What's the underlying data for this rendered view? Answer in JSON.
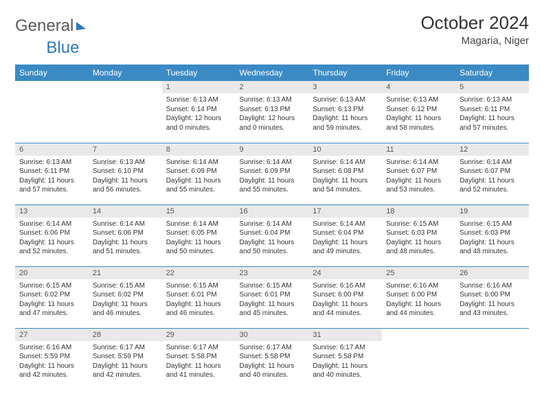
{
  "logo": {
    "word1": "General",
    "word2": "Blue"
  },
  "title": {
    "month": "October 2024",
    "location": "Magaria, Niger"
  },
  "colors": {
    "header_bg": "#3b8ac4",
    "header_fg": "#ffffff",
    "daynum_bg": "#e9e9e9",
    "daynum_fg": "#555555",
    "cell_border": "#3b8ac4",
    "body_text": "#333333",
    "logo_grey": "#5a5a5a",
    "logo_blue": "#2f78b7",
    "page_bg": "#ffffff"
  },
  "typography": {
    "title_fontsize": 26,
    "location_fontsize": 15,
    "header_fontsize": 12,
    "daynum_fontsize": 11,
    "body_fontsize": 10
  },
  "day_labels": [
    "Sunday",
    "Monday",
    "Tuesday",
    "Wednesday",
    "Thursday",
    "Friday",
    "Saturday"
  ],
  "weeks": [
    [
      null,
      null,
      {
        "n": "1",
        "l1": "Sunrise: 6:13 AM",
        "l2": "Sunset: 6:14 PM",
        "l3": "Daylight: 12 hours",
        "l4": "and 0 minutes."
      },
      {
        "n": "2",
        "l1": "Sunrise: 6:13 AM",
        "l2": "Sunset: 6:13 PM",
        "l3": "Daylight: 12 hours",
        "l4": "and 0 minutes."
      },
      {
        "n": "3",
        "l1": "Sunrise: 6:13 AM",
        "l2": "Sunset: 6:13 PM",
        "l3": "Daylight: 11 hours",
        "l4": "and 59 minutes."
      },
      {
        "n": "4",
        "l1": "Sunrise: 6:13 AM",
        "l2": "Sunset: 6:12 PM",
        "l3": "Daylight: 11 hours",
        "l4": "and 58 minutes."
      },
      {
        "n": "5",
        "l1": "Sunrise: 6:13 AM",
        "l2": "Sunset: 6:11 PM",
        "l3": "Daylight: 11 hours",
        "l4": "and 57 minutes."
      }
    ],
    [
      {
        "n": "6",
        "l1": "Sunrise: 6:13 AM",
        "l2": "Sunset: 6:11 PM",
        "l3": "Daylight: 11 hours",
        "l4": "and 57 minutes."
      },
      {
        "n": "7",
        "l1": "Sunrise: 6:13 AM",
        "l2": "Sunset: 6:10 PM",
        "l3": "Daylight: 11 hours",
        "l4": "and 56 minutes."
      },
      {
        "n": "8",
        "l1": "Sunrise: 6:14 AM",
        "l2": "Sunset: 6:09 PM",
        "l3": "Daylight: 11 hours",
        "l4": "and 55 minutes."
      },
      {
        "n": "9",
        "l1": "Sunrise: 6:14 AM",
        "l2": "Sunset: 6:09 PM",
        "l3": "Daylight: 11 hours",
        "l4": "and 55 minutes."
      },
      {
        "n": "10",
        "l1": "Sunrise: 6:14 AM",
        "l2": "Sunset: 6:08 PM",
        "l3": "Daylight: 11 hours",
        "l4": "and 54 minutes."
      },
      {
        "n": "11",
        "l1": "Sunrise: 6:14 AM",
        "l2": "Sunset: 6:07 PM",
        "l3": "Daylight: 11 hours",
        "l4": "and 53 minutes."
      },
      {
        "n": "12",
        "l1": "Sunrise: 6:14 AM",
        "l2": "Sunset: 6:07 PM",
        "l3": "Daylight: 11 hours",
        "l4": "and 52 minutes."
      }
    ],
    [
      {
        "n": "13",
        "l1": "Sunrise: 6:14 AM",
        "l2": "Sunset: 6:06 PM",
        "l3": "Daylight: 11 hours",
        "l4": "and 52 minutes."
      },
      {
        "n": "14",
        "l1": "Sunrise: 6:14 AM",
        "l2": "Sunset: 6:06 PM",
        "l3": "Daylight: 11 hours",
        "l4": "and 51 minutes."
      },
      {
        "n": "15",
        "l1": "Sunrise: 6:14 AM",
        "l2": "Sunset: 6:05 PM",
        "l3": "Daylight: 11 hours",
        "l4": "and 50 minutes."
      },
      {
        "n": "16",
        "l1": "Sunrise: 6:14 AM",
        "l2": "Sunset: 6:04 PM",
        "l3": "Daylight: 11 hours",
        "l4": "and 50 minutes."
      },
      {
        "n": "17",
        "l1": "Sunrise: 6:14 AM",
        "l2": "Sunset: 6:04 PM",
        "l3": "Daylight: 11 hours",
        "l4": "and 49 minutes."
      },
      {
        "n": "18",
        "l1": "Sunrise: 6:15 AM",
        "l2": "Sunset: 6:03 PM",
        "l3": "Daylight: 11 hours",
        "l4": "and 48 minutes."
      },
      {
        "n": "19",
        "l1": "Sunrise: 6:15 AM",
        "l2": "Sunset: 6:03 PM",
        "l3": "Daylight: 11 hours",
        "l4": "and 48 minutes."
      }
    ],
    [
      {
        "n": "20",
        "l1": "Sunrise: 6:15 AM",
        "l2": "Sunset: 6:02 PM",
        "l3": "Daylight: 11 hours",
        "l4": "and 47 minutes."
      },
      {
        "n": "21",
        "l1": "Sunrise: 6:15 AM",
        "l2": "Sunset: 6:02 PM",
        "l3": "Daylight: 11 hours",
        "l4": "and 46 minutes."
      },
      {
        "n": "22",
        "l1": "Sunrise: 6:15 AM",
        "l2": "Sunset: 6:01 PM",
        "l3": "Daylight: 11 hours",
        "l4": "and 46 minutes."
      },
      {
        "n": "23",
        "l1": "Sunrise: 6:15 AM",
        "l2": "Sunset: 6:01 PM",
        "l3": "Daylight: 11 hours",
        "l4": "and 45 minutes."
      },
      {
        "n": "24",
        "l1": "Sunrise: 6:16 AM",
        "l2": "Sunset: 6:00 PM",
        "l3": "Daylight: 11 hours",
        "l4": "and 44 minutes."
      },
      {
        "n": "25",
        "l1": "Sunrise: 6:16 AM",
        "l2": "Sunset: 6:00 PM",
        "l3": "Daylight: 11 hours",
        "l4": "and 44 minutes."
      },
      {
        "n": "26",
        "l1": "Sunrise: 6:16 AM",
        "l2": "Sunset: 6:00 PM",
        "l3": "Daylight: 11 hours",
        "l4": "and 43 minutes."
      }
    ],
    [
      {
        "n": "27",
        "l1": "Sunrise: 6:16 AM",
        "l2": "Sunset: 5:59 PM",
        "l3": "Daylight: 11 hours",
        "l4": "and 42 minutes."
      },
      {
        "n": "28",
        "l1": "Sunrise: 6:17 AM",
        "l2": "Sunset: 5:59 PM",
        "l3": "Daylight: 11 hours",
        "l4": "and 42 minutes."
      },
      {
        "n": "29",
        "l1": "Sunrise: 6:17 AM",
        "l2": "Sunset: 5:58 PM",
        "l3": "Daylight: 11 hours",
        "l4": "and 41 minutes."
      },
      {
        "n": "30",
        "l1": "Sunrise: 6:17 AM",
        "l2": "Sunset: 5:58 PM",
        "l3": "Daylight: 11 hours",
        "l4": "and 40 minutes."
      },
      {
        "n": "31",
        "l1": "Sunrise: 6:17 AM",
        "l2": "Sunset: 5:58 PM",
        "l3": "Daylight: 11 hours",
        "l4": "and 40 minutes."
      },
      null,
      null
    ]
  ]
}
